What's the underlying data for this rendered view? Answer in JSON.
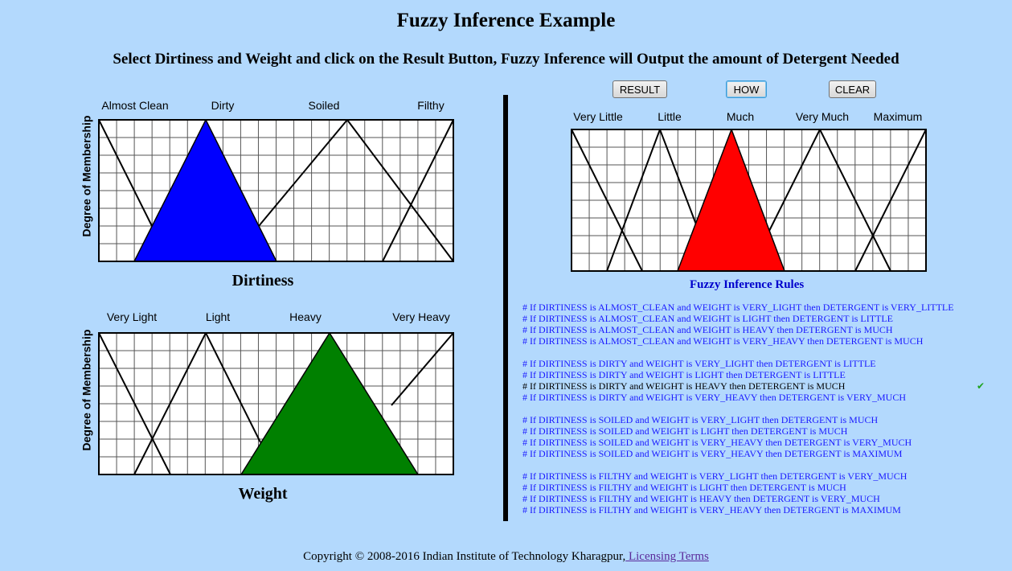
{
  "header": {
    "title": "Fuzzy Inference Example",
    "instructions": "Select Dirtiness and Weight and click on the Result Button, Fuzzy Inference will Output the amount of Detergent Needed"
  },
  "dirtiness": {
    "y_label": "Degree of Membership",
    "axis_title": "Dirtiness",
    "terms": [
      "Almost Clean",
      "Dirty",
      "Soiled",
      "Filthy"
    ],
    "selected_term": "Dirty",
    "fill_color": "#0000ff"
  },
  "weight": {
    "y_label": "Degree of Membership",
    "axis_title": "Weight",
    "terms": [
      "Very Light",
      "Light",
      "Heavy",
      "Very Heavy"
    ],
    "selected_term": "Heavy",
    "fill_color": "#008000"
  },
  "detergent": {
    "terms": [
      "Very Little",
      "Little",
      "Much",
      "Very Much",
      "Maximum"
    ],
    "selected_term": "Much",
    "fill_color": "#ff0000"
  },
  "buttons": {
    "result": "RESULT",
    "how": "HOW",
    "clear": "CLEAR"
  },
  "rules_title": "Fuzzy Inference Rules",
  "rules": [
    {
      "text": "# If DIRTINESS is ALMOST_CLEAN and WEIGHT is VERY_LIGHT then DETERGENT is  VERY_LITTLE",
      "active": false,
      "gap": false
    },
    {
      "text": "# If DIRTINESS is ALMOST_CLEAN and WEIGHT is LIGHT then DETERGENT is  LITTLE",
      "active": false,
      "gap": false
    },
    {
      "text": "# If DIRTINESS is ALMOST_CLEAN and WEIGHT is HEAVY then DETERGENT is MUCH",
      "active": false,
      "gap": false
    },
    {
      "text": "# If DIRTINESS is ALMOST_CLEAN and WEIGHT is VERY_HEAVY then DETERGENT is MUCH",
      "active": false,
      "gap": false
    },
    {
      "text": "# If DIRTINESS is DIRTY and WEIGHT is VERY_LIGHT then DETERGENT is LITTLE",
      "active": false,
      "gap": true
    },
    {
      "text": "# If DIRTINESS is DIRTY and WEIGHT is LIGHT then DETERGENT is LITTLE",
      "active": false,
      "gap": false
    },
    {
      "text": "# If DIRTINESS is DIRTY and WEIGHT is HEAVY then DETERGENT is MUCH",
      "active": true,
      "gap": false
    },
    {
      "text": "# If DIRTINESS is DIRTY and WEIGHT is VERY_HEAVY then DETERGENT is VERY_MUCH",
      "active": false,
      "gap": false
    },
    {
      "text": "# If DIRTINESS is SOILED and WEIGHT is VERY_LIGHT then DETERGENT is MUCH",
      "active": false,
      "gap": true
    },
    {
      "text": "# If DIRTINESS is SOILED and WEIGHT is LIGHT then DETERGENT is MUCH",
      "active": false,
      "gap": false
    },
    {
      "text": "# If DIRTINESS is SOILED and WEIGHT is VERY_HEAVY then DETERGENT is VERY_MUCH",
      "active": false,
      "gap": false
    },
    {
      "text": "# If DIRTINESS is SOILED and WEIGHT is VERY_HEAVY then DETERGENT is MAXIMUM",
      "active": false,
      "gap": false
    },
    {
      "text": "# If DIRTINESS is FILTHY and WEIGHT is VERY_LIGHT then DETERGENT is VERY_MUCH",
      "active": false,
      "gap": true
    },
    {
      "text": "# If DIRTINESS is FILTHY and WEIGHT is LIGHT then DETERGENT is MUCH",
      "active": false,
      "gap": false
    },
    {
      "text": "# If DIRTINESS is FILTHY and WEIGHT is HEAVY then DETERGENT is  VERY_MUCH",
      "active": false,
      "gap": false
    },
    {
      "text": "# If DIRTINESS is FILTHY and WEIGHT is VERY_HEAVY then DETERGENT is MAXIMUM",
      "active": false,
      "gap": false
    }
  ],
  "active_rule_icon": "check-icon",
  "footer": {
    "copyright": "Copyright © 2008-2016 Indian Institute of Technology Kharagpur,",
    "link": " Licensing Terms"
  }
}
